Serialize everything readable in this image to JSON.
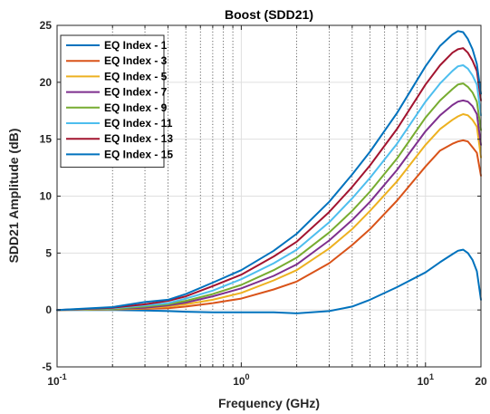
{
  "chart_data": {
    "type": "line",
    "title": "Boost (SDD21)",
    "xlabel": "Frequency (GHz)",
    "ylabel": "SDD21 Amplitude (dB)",
    "xscale": "log",
    "xlim": [
      0.1,
      20
    ],
    "ylim": [
      -5,
      25
    ],
    "grid": "on",
    "legend_location": "top-left",
    "x_ticks": [
      {
        "value": 0.1,
        "base": "10",
        "exp": "-1"
      },
      {
        "value": 1,
        "base": "10",
        "exp": "0"
      },
      {
        "value": 10,
        "base": "10",
        "exp": "1"
      },
      {
        "value": 20,
        "base": "20",
        "exp": ""
      }
    ],
    "y_ticks": [
      "-5",
      "0",
      "5",
      "10",
      "15",
      "20",
      "25"
    ],
    "x": [
      0.1,
      0.2,
      0.3,
      0.4,
      0.5,
      0.7,
      1,
      1.5,
      2,
      3,
      4,
      5,
      7,
      10,
      12,
      14,
      15,
      16,
      17,
      18,
      19,
      20
    ],
    "series": [
      {
        "name": "EQ Index - 1",
        "color": "#0072BD",
        "values": [
          0,
          0,
          -0.05,
          -0.1,
          -0.15,
          -0.2,
          -0.2,
          -0.2,
          -0.3,
          -0.1,
          0.3,
          0.9,
          2,
          3.3,
          4.2,
          4.9,
          5.2,
          5.3,
          5,
          4.4,
          3.4,
          0.9
        ]
      },
      {
        "name": "EQ Index - 3",
        "color": "#D95319",
        "values": [
          0,
          0.05,
          0.1,
          0.15,
          0.3,
          0.6,
          1,
          1.8,
          2.5,
          4.1,
          5.7,
          7.1,
          9.6,
          12.6,
          14,
          14.6,
          14.8,
          14.9,
          14.8,
          14.3,
          13.8,
          11.8
        ]
      },
      {
        "name": "EQ Index - 5",
        "color": "#EDB120",
        "values": [
          0,
          0.05,
          0.15,
          0.3,
          0.5,
          0.9,
          1.5,
          2.6,
          3.5,
          5.4,
          7.1,
          8.7,
          11.3,
          14.5,
          15.9,
          16.7,
          17,
          17.2,
          17.1,
          16.7,
          16.1,
          13.4
        ]
      },
      {
        "name": "EQ Index - 7",
        "color": "#7E2F8E",
        "values": [
          0,
          0.1,
          0.2,
          0.4,
          0.65,
          1.2,
          1.9,
          3,
          4,
          6.1,
          7.9,
          9.5,
          12.3,
          15.7,
          17.1,
          18,
          18.3,
          18.4,
          18.3,
          17.9,
          17.2,
          14.5
        ]
      },
      {
        "name": "EQ Index - 9",
        "color": "#77AC30",
        "values": [
          0,
          0.1,
          0.3,
          0.5,
          0.8,
          1.4,
          2.2,
          3.5,
          4.6,
          6.8,
          8.7,
          10.4,
          13.3,
          16.9,
          18.4,
          19.4,
          19.8,
          19.9,
          19.6,
          19.1,
          18.3,
          15.8
        ]
      },
      {
        "name": "EQ Index - 11",
        "color": "#4DBEEE",
        "values": [
          0,
          0.15,
          0.4,
          0.6,
          1,
          1.7,
          2.7,
          4.1,
          5.3,
          7.7,
          9.8,
          11.6,
          14.6,
          18.3,
          19.9,
          21,
          21.4,
          21.5,
          21.2,
          20.6,
          19.8,
          17.1
        ]
      },
      {
        "name": "EQ Index - 13",
        "color": "#A2142F",
        "values": [
          0,
          0.2,
          0.5,
          0.8,
          1.2,
          2.1,
          3.1,
          4.7,
          6,
          8.6,
          10.8,
          12.7,
          15.9,
          19.8,
          21.5,
          22.6,
          22.9,
          23,
          22.6,
          21.9,
          21,
          18.4
        ]
      },
      {
        "name": "EQ Index - 15",
        "color": "#0072BD",
        "values": [
          0,
          0.25,
          0.7,
          0.9,
          1.4,
          2.4,
          3.5,
          5.2,
          6.7,
          9.5,
          11.9,
          13.9,
          17.3,
          21.4,
          23.2,
          24.2,
          24.5,
          24.4,
          23.8,
          22.9,
          21.6,
          19
        ]
      }
    ]
  }
}
